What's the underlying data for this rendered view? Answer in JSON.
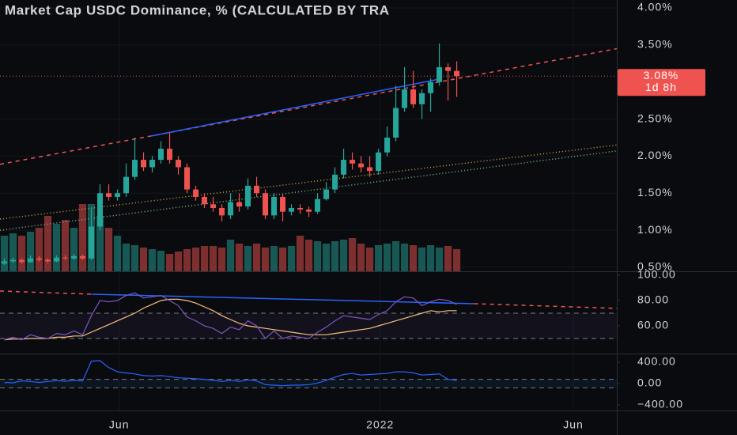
{
  "chart_data": {
    "type": "candlestick",
    "title": "Market Cap USDC Dominance, % (CALCULATED BY TRA",
    "up_color": "#26a69a",
    "down_color": "#ef5350",
    "xlim": [
      -0.5,
      70.4
    ],
    "xticks": [
      {
        "value": 13.2,
        "label": "Jun"
      },
      {
        "value": 43.2,
        "label": "2022"
      },
      {
        "value": 65.4,
        "label": "Jun"
      }
    ],
    "ylim": [
      0.446,
      4.107
    ],
    "yticks": [
      {
        "value": 0.5,
        "label": "0.50%"
      },
      {
        "value": 1.0,
        "label": "1.00%"
      },
      {
        "value": 1.5,
        "label": "1.50%"
      },
      {
        "value": 2.0,
        "label": "2.00%"
      },
      {
        "value": 2.5,
        "label": "2.50%"
      },
      {
        "value": 3.5,
        "label": "3.50%"
      },
      {
        "value": 4.0,
        "label": "4.00%"
      }
    ],
    "last_price": {
      "value": 3.08,
      "label": "3.08%"
    },
    "countdown": "1d 8h",
    "ohlc": [
      [
        0.55,
        0.62,
        0.53,
        0.58
      ],
      [
        0.58,
        0.63,
        0.56,
        0.6
      ],
      [
        0.6,
        0.62,
        0.55,
        0.57
      ],
      [
        0.57,
        0.66,
        0.56,
        0.62
      ],
      [
        0.62,
        0.65,
        0.58,
        0.6
      ],
      [
        0.6,
        0.62,
        0.56,
        0.58
      ],
      [
        0.58,
        0.66,
        0.57,
        0.63
      ],
      [
        0.63,
        0.66,
        0.6,
        0.62
      ],
      [
        0.62,
        0.68,
        0.6,
        0.65
      ],
      [
        0.65,
        0.67,
        0.6,
        0.62
      ],
      [
        0.62,
        1.3,
        0.6,
        1.05
      ],
      [
        1.05,
        1.62,
        1.0,
        1.5
      ],
      [
        1.5,
        1.62,
        1.4,
        1.45
      ],
      [
        1.45,
        1.55,
        1.4,
        1.5
      ],
      [
        1.5,
        1.9,
        1.45,
        1.72
      ],
      [
        1.72,
        2.25,
        1.68,
        1.95
      ],
      [
        1.95,
        2.05,
        1.8,
        1.85
      ],
      [
        1.85,
        2.0,
        1.78,
        1.95
      ],
      [
        1.95,
        2.2,
        1.9,
        2.1
      ],
      [
        2.1,
        2.32,
        1.9,
        1.95
      ],
      [
        1.95,
        2.0,
        1.75,
        1.85
      ],
      [
        1.85,
        1.9,
        1.5,
        1.55
      ],
      [
        1.55,
        1.6,
        1.4,
        1.45
      ],
      [
        1.45,
        1.5,
        1.3,
        1.35
      ],
      [
        1.35,
        1.45,
        1.25,
        1.3
      ],
      [
        1.3,
        1.35,
        1.12,
        1.2
      ],
      [
        1.2,
        1.5,
        1.15,
        1.38
      ],
      [
        1.38,
        1.5,
        1.25,
        1.32
      ],
      [
        1.32,
        1.7,
        1.28,
        1.6
      ],
      [
        1.6,
        1.72,
        1.45,
        1.5
      ],
      [
        1.5,
        1.55,
        1.15,
        1.2
      ],
      [
        1.2,
        1.5,
        1.15,
        1.45
      ],
      [
        1.45,
        1.48,
        1.12,
        1.25
      ],
      [
        1.25,
        1.35,
        1.2,
        1.3
      ],
      [
        1.3,
        1.35,
        1.22,
        1.28
      ],
      [
        1.28,
        1.32,
        1.18,
        1.25
      ],
      [
        1.25,
        1.5,
        1.22,
        1.42
      ],
      [
        1.42,
        1.65,
        1.4,
        1.55
      ],
      [
        1.55,
        1.85,
        1.5,
        1.75
      ],
      [
        1.75,
        2.1,
        1.7,
        1.95
      ],
      [
        1.95,
        2.05,
        1.82,
        1.9
      ],
      [
        1.9,
        2.0,
        1.78,
        1.85
      ],
      [
        1.85,
        2.0,
        1.72,
        1.8
      ],
      [
        1.8,
        2.1,
        1.75,
        2.05
      ],
      [
        2.05,
        2.4,
        2.0,
        2.25
      ],
      [
        2.25,
        2.95,
        2.2,
        2.65
      ],
      [
        2.65,
        3.2,
        2.6,
        2.9
      ],
      [
        2.9,
        3.15,
        2.65,
        2.7
      ],
      [
        2.7,
        2.9,
        2.5,
        2.85
      ],
      [
        2.85,
        3.05,
        2.6,
        3.0
      ],
      [
        3.0,
        3.52,
        2.95,
        3.2
      ],
      [
        3.2,
        3.25,
        2.75,
        3.15
      ],
      [
        3.15,
        3.28,
        2.8,
        3.08
      ]
    ],
    "volume": [
      45,
      48,
      45,
      50,
      55,
      70,
      60,
      65,
      55,
      85,
      85,
      70,
      55,
      45,
      35,
      33,
      30,
      28,
      26,
      22,
      25,
      28,
      30,
      32,
      32,
      30,
      40,
      35,
      32,
      35,
      30,
      32,
      30,
      32,
      45,
      40,
      38,
      35,
      38,
      40,
      42,
      35,
      30,
      33,
      35,
      38,
      35,
      33,
      30,
      33,
      30,
      32,
      28
    ],
    "trendlines": [
      {
        "color": "#ef5350",
        "dash": "5,5",
        "x": [
          -0.5,
          70.4
        ],
        "y": [
          1.89,
          3.45
        ]
      },
      {
        "color": "#2962ff",
        "dash": "",
        "x": [
          16.8,
          50
        ],
        "y": [
          2.27,
          3.04
        ]
      },
      {
        "color": "#c9a83b",
        "dash": "1,3",
        "x": [
          -0.5,
          70.4
        ],
        "y": [
          1.15,
          2.15
        ]
      },
      {
        "color": "#7fbf7f",
        "dash": "1,3",
        "x": [
          -0.5,
          70.4
        ],
        "y": [
          1.0,
          2.07
        ]
      }
    ],
    "rsi": {
      "ylim": [
        38.1,
        103.1
      ],
      "yticks": [
        {
          "value": 60,
          "label": "60.00"
        },
        {
          "value": 80,
          "label": "80.00"
        },
        {
          "value": 100,
          "label": "100.00"
        }
      ],
      "bands": [
        70,
        50
      ],
      "color": "#7e57c2",
      "ma_color": "#f7c17a",
      "values": [
        49,
        51,
        49,
        53,
        51,
        50,
        54,
        53,
        56,
        53,
        68,
        80,
        79,
        80,
        84,
        86,
        82,
        83,
        84,
        80,
        76,
        67,
        64,
        60,
        58,
        54,
        59,
        57,
        64,
        60,
        50,
        56,
        50,
        52,
        51,
        50,
        55,
        59,
        64,
        68,
        67,
        66,
        65,
        69,
        72,
        79,
        83,
        82,
        76,
        79,
        81,
        80,
        77
      ],
      "ma": [
        49,
        49.5,
        49.5,
        50,
        50,
        50,
        51,
        51,
        52,
        52,
        55,
        58,
        61,
        64,
        67,
        70,
        74,
        77,
        80,
        81,
        81,
        80,
        78,
        75,
        72,
        68,
        65,
        62,
        60,
        59,
        58,
        57,
        56,
        55,
        54,
        53,
        53,
        53,
        54,
        55,
        56,
        57,
        58,
        60,
        62,
        64,
        66,
        68,
        70,
        72,
        71,
        72,
        72
      ],
      "trendlines": [
        {
          "color": "#ef5350",
          "dash": "5,5",
          "x": [
            -0.5,
            10
          ],
          "y": [
            87.5,
            85
          ]
        },
        {
          "color": "#2962ff",
          "dash": "",
          "x": [
            10,
            54
          ],
          "y": [
            85,
            77.5
          ]
        },
        {
          "color": "#ef5350",
          "dash": "5,5",
          "x": [
            54,
            70.4
          ],
          "y": [
            77.5,
            73.8
          ]
        }
      ]
    },
    "osc": {
      "ylim": [
        -504,
        563
      ],
      "yticks": [
        {
          "value": -400,
          "label": "−400.00"
        },
        {
          "value": 0,
          "label": "0.00"
        },
        {
          "value": 400,
          "label": "400.00"
        }
      ],
      "bands": [
        80,
        -80
      ],
      "color": "#2962ff",
      "values": [
        20,
        15,
        50,
        40,
        20,
        40,
        55,
        45,
        60,
        50,
        420,
        430,
        300,
        220,
        200,
        180,
        150,
        140,
        150,
        130,
        110,
        100,
        90,
        80,
        60,
        40,
        60,
        40,
        70,
        50,
        -20,
        -30,
        -40,
        -30,
        -30,
        -20,
        10,
        60,
        120,
        170,
        190,
        160,
        170,
        180,
        190,
        220,
        220,
        200,
        160,
        170,
        180,
        80,
        60
      ]
    }
  }
}
